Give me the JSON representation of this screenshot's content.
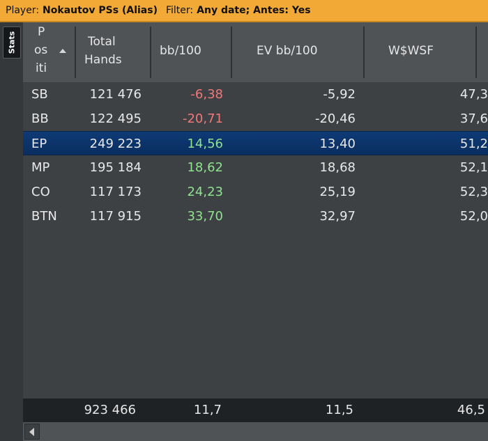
{
  "title_bar": {
    "player_label": "Player:",
    "player_value": "Nokautov PSs (Alias)",
    "filter_label": "Filter:",
    "filter_value": "Any date; Antes: Yes",
    "background_color": "#f3a935"
  },
  "side_tab": {
    "label": "Stats"
  },
  "table": {
    "sort_column": "position",
    "sort_direction": "ascending",
    "columns": {
      "position": [
        "P",
        "os",
        "iti"
      ],
      "total_hands": [
        "Total",
        "Hands"
      ],
      "bb100": "bb/100",
      "ev_bb100": "EV bb/100",
      "wwsf": "W$WSF"
    },
    "rows": [
      {
        "position": "SB",
        "total_hands": "121 476",
        "bb100": "-6,38",
        "ev_bb100": "-5,92",
        "wwsf": "47,3",
        "bb_sign": "neg"
      },
      {
        "position": "BB",
        "total_hands": "122 495",
        "bb100": "-20,71",
        "ev_bb100": "-20,46",
        "wwsf": "37,6",
        "bb_sign": "neg"
      },
      {
        "position": "EP",
        "total_hands": "249 223",
        "bb100": "14,56",
        "ev_bb100": "13,40",
        "wwsf": "51,2",
        "bb_sign": "pos",
        "selected": true
      },
      {
        "position": "MP",
        "total_hands": "195 184",
        "bb100": "18,62",
        "ev_bb100": "18,68",
        "wwsf": "52,1",
        "bb_sign": "pos"
      },
      {
        "position": "CO",
        "total_hands": "117 173",
        "bb100": "24,23",
        "ev_bb100": "25,19",
        "wwsf": "52,3",
        "bb_sign": "pos"
      },
      {
        "position": "BTN",
        "total_hands": "117 915",
        "bb100": "33,70",
        "ev_bb100": "32,97",
        "wwsf": "52,0",
        "bb_sign": "pos"
      }
    ],
    "totals": {
      "total_hands": "923 466",
      "bb100": "11,7",
      "ev_bb100": "11,5",
      "wwsf": "46,5"
    }
  },
  "colors": {
    "negative": "#f0787a",
    "positive": "#8fe38f",
    "selected_row": "#0e3a75"
  },
  "icons": {
    "sort": "sort-ascending-icon",
    "scroll_left": "chevron-left-icon"
  }
}
